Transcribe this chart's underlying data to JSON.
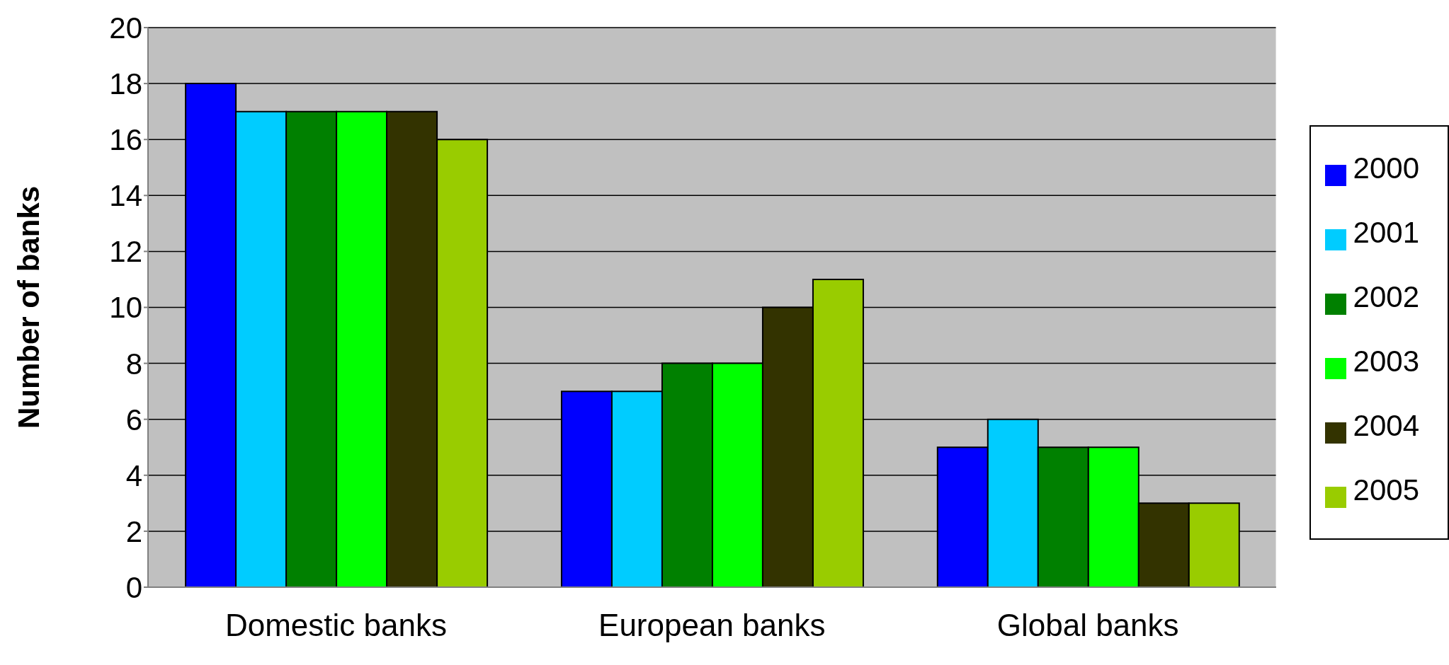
{
  "chart_data": {
    "type": "bar",
    "ylabel": "Number of banks",
    "categories": [
      "Domestic banks",
      "European banks",
      "Global banks"
    ],
    "series": [
      {
        "name": "2000",
        "color": "#0000ff",
        "values": [
          18,
          7,
          5
        ]
      },
      {
        "name": "2001",
        "color": "#00ccff",
        "values": [
          17,
          7,
          6
        ]
      },
      {
        "name": "2002",
        "color": "#008000",
        "values": [
          17,
          8,
          5
        ]
      },
      {
        "name": "2003",
        "color": "#00ff00",
        "values": [
          17,
          8,
          5
        ]
      },
      {
        "name": "2004",
        "color": "#333300",
        "values": [
          17,
          10,
          3
        ]
      },
      {
        "name": "2005",
        "color": "#99cc00",
        "values": [
          16,
          11,
          3
        ]
      }
    ],
    "ylim": [
      0,
      20
    ],
    "yticks": [
      0,
      2,
      4,
      6,
      8,
      10,
      12,
      14,
      16,
      18,
      20
    ],
    "grid": "y",
    "legend": "right"
  }
}
